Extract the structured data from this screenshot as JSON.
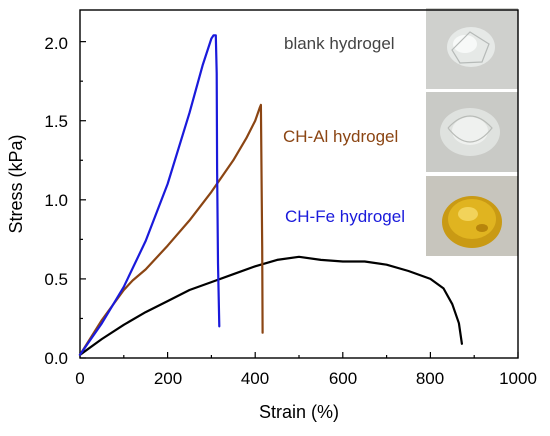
{
  "chart_data": {
    "type": "line",
    "xlabel": "Strain (%)",
    "ylabel": "Stress (kPa)",
    "xlim": [
      0,
      1000
    ],
    "ylim": [
      0,
      2.2
    ],
    "x_ticks": [
      "0",
      "200",
      "400",
      "600",
      "800",
      "1000"
    ],
    "y_ticks": [
      "0.0",
      "0.5",
      "1.0",
      "1.5",
      "2.0"
    ],
    "x_tick_values": [
      0,
      200,
      400,
      600,
      800,
      1000
    ],
    "y_tick_values": [
      0,
      0.5,
      1.0,
      1.5,
      2.0
    ],
    "grid": false,
    "legend_placement": "right, beside photographs",
    "series": [
      {
        "name": "blank hydrogel",
        "color": "#000000",
        "x": [
          0,
          50,
          100,
          150,
          200,
          250,
          300,
          350,
          400,
          450,
          500,
          550,
          600,
          650,
          700,
          750,
          800,
          830,
          850,
          865,
          872
        ],
        "y": [
          0.02,
          0.12,
          0.21,
          0.29,
          0.36,
          0.43,
          0.48,
          0.53,
          0.58,
          0.62,
          0.64,
          0.62,
          0.61,
          0.61,
          0.59,
          0.55,
          0.5,
          0.44,
          0.34,
          0.22,
          0.09
        ]
      },
      {
        "name": "CH-Al hydrogel",
        "color": "#8B4513",
        "x": [
          0,
          50,
          100,
          120,
          150,
          200,
          250,
          300,
          350,
          380,
          400,
          410,
          413,
          416,
          417
        ],
        "y": [
          0.02,
          0.24,
          0.43,
          0.49,
          0.56,
          0.71,
          0.87,
          1.05,
          1.25,
          1.39,
          1.5,
          1.58,
          1.6,
          0.7,
          0.16
        ]
      },
      {
        "name": "CH-Fe hydrogel",
        "color": "#1a1adb",
        "x": [
          0,
          50,
          100,
          150,
          200,
          250,
          280,
          300,
          305,
          310,
          312,
          313,
          315,
          318
        ],
        "y": [
          0.02,
          0.22,
          0.45,
          0.74,
          1.1,
          1.55,
          1.85,
          2.02,
          2.04,
          2.04,
          1.8,
          1.2,
          0.6,
          0.2
        ]
      }
    ],
    "annotations": [
      {
        "text": "blank hydrogel",
        "color": "#444444"
      },
      {
        "text": "CH-Al hydrogel",
        "color": "#8B4513"
      },
      {
        "text": "CH-Fe hydrogel",
        "color": "#1a1adb"
      }
    ]
  }
}
